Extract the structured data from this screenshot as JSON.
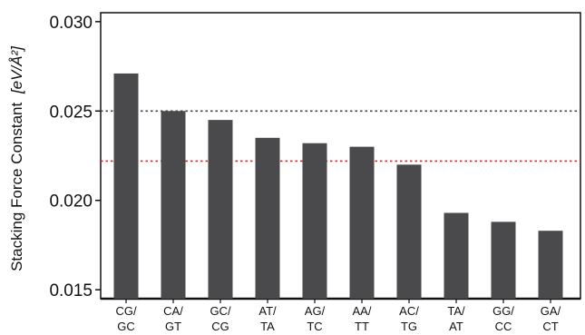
{
  "chart_data": {
    "type": "bar",
    "ylabel_main": "Stacking Force Constant",
    "ylabel_unit": "[eV/Å²]",
    "categories": [
      [
        "CG/",
        "GC"
      ],
      [
        "CA/",
        "GT"
      ],
      [
        "GC/",
        "CG"
      ],
      [
        "AT/",
        "TA"
      ],
      [
        "AG/",
        "TC"
      ],
      [
        "AA/",
        "TT"
      ],
      [
        "AC/",
        "TG"
      ],
      [
        "TA/",
        "AT"
      ],
      [
        "GG/",
        "CC"
      ],
      [
        "GA/",
        "CT"
      ]
    ],
    "values": [
      0.0271,
      0.025,
      0.0245,
      0.0235,
      0.0232,
      0.023,
      0.022,
      0.0193,
      0.0188,
      0.0183
    ],
    "ylim": [
      0.0145,
      0.0305
    ],
    "yticks": [
      "0.015",
      "0.020",
      "0.025",
      "0.030"
    ],
    "ytick_values": [
      0.015,
      0.02,
      0.025,
      0.03
    ],
    "reference_lines": [
      {
        "value": 0.025,
        "color": "#444444",
        "style": "dotted"
      },
      {
        "value": 0.0222,
        "color": "#d62a2a",
        "style": "dotted"
      }
    ],
    "bar_color": "#4a4a4c",
    "grid": false,
    "legend": "none"
  }
}
